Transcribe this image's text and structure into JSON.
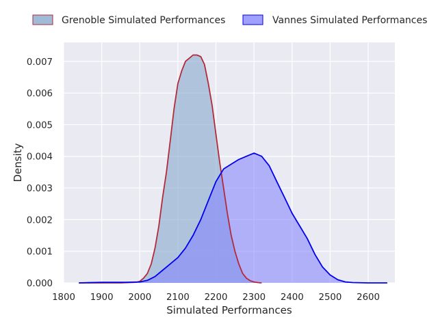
{
  "chart_data": {
    "type": "area",
    "title": "",
    "xlabel": "Simulated Performances",
    "ylabel": "Density",
    "xlim": [
      1800,
      2670
    ],
    "ylim": [
      0,
      0.0076
    ],
    "xticks": [
      1800,
      1900,
      2000,
      2100,
      2200,
      2300,
      2400,
      2500,
      2600
    ],
    "yticks": [
      0.0,
      0.001,
      0.002,
      0.003,
      0.004,
      0.005,
      0.006,
      0.007
    ],
    "ytick_labels": [
      "0.000",
      "0.001",
      "0.002",
      "0.003",
      "0.004",
      "0.005",
      "0.006",
      "0.007"
    ],
    "grid": true,
    "background_color": "#eaeaf2",
    "legend_placement": "top-center, above plot",
    "series": [
      {
        "name": "Grenoble Simulated Performances",
        "fill_color": "#8fafd0",
        "line_color": "#b22a3a",
        "fill_opacity": 0.65,
        "x": [
          1840,
          1900,
          1950,
          1990,
          2000,
          2010,
          2020,
          2030,
          2040,
          2050,
          2060,
          2070,
          2080,
          2090,
          2100,
          2110,
          2120,
          2130,
          2140,
          2150,
          2160,
          2170,
          2180,
          2190,
          2200,
          2210,
          2220,
          2230,
          2240,
          2250,
          2260,
          2270,
          2280,
          2290,
          2300,
          2310,
          2320
        ],
        "y": [
          0,
          0,
          0,
          2e-05,
          5e-05,
          0.00015,
          0.0003,
          0.0006,
          0.0011,
          0.0018,
          0.0027,
          0.0035,
          0.0045,
          0.0055,
          0.0063,
          0.0067,
          0.007,
          0.0071,
          0.0072,
          0.0072,
          0.00715,
          0.0069,
          0.0063,
          0.0056,
          0.0047,
          0.0038,
          0.003,
          0.0022,
          0.0015,
          0.001,
          0.0006,
          0.0003,
          0.00015,
          7e-05,
          3e-05,
          1e-05,
          0
        ]
      },
      {
        "name": "Vannes Simulated Performances",
        "fill_color": "#8080ff",
        "line_color": "#0000ee",
        "fill_opacity": 0.55,
        "x": [
          1840,
          1900,
          1960,
          2000,
          2020,
          2040,
          2060,
          2080,
          2100,
          2120,
          2140,
          2160,
          2180,
          2200,
          2220,
          2240,
          2260,
          2280,
          2300,
          2320,
          2340,
          2360,
          2380,
          2400,
          2420,
          2440,
          2460,
          2480,
          2500,
          2520,
          2540,
          2560,
          2600,
          2650
        ],
        "y": [
          0,
          2e-05,
          2e-05,
          3e-05,
          8e-05,
          0.0002,
          0.0004,
          0.0006,
          0.0008,
          0.0011,
          0.0015,
          0.002,
          0.0026,
          0.0032,
          0.0036,
          0.00375,
          0.0039,
          0.004,
          0.0041,
          0.004,
          0.0037,
          0.0032,
          0.0027,
          0.0022,
          0.0018,
          0.0014,
          0.0009,
          0.0005,
          0.00025,
          0.0001,
          3e-05,
          1e-05,
          0,
          0
        ]
      }
    ]
  }
}
